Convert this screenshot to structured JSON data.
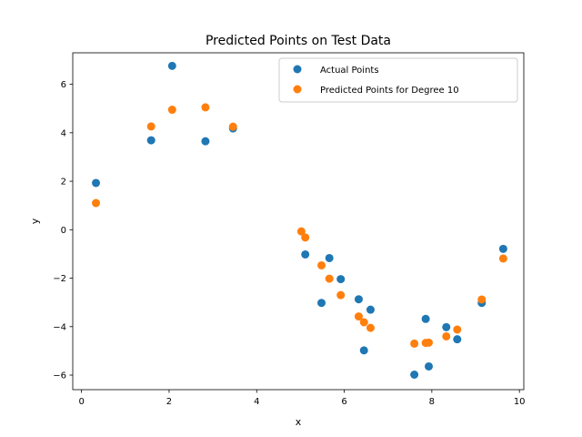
{
  "chart_data": {
    "type": "scatter",
    "title": "Predicted Points on Test Data",
    "xlabel": "x",
    "ylabel": "y",
    "xlim": [
      -0.2,
      10.1
    ],
    "ylim": [
      -6.6,
      7.3
    ],
    "xticks": [
      0,
      2,
      4,
      6,
      8,
      10
    ],
    "yticks": [
      -6,
      -4,
      -2,
      0,
      2,
      4,
      6
    ],
    "grid": false,
    "legend_position": "upper right",
    "series": [
      {
        "name": "Actual Points",
        "color": "#1f77b4",
        "points": [
          [
            0.33,
            1.93
          ],
          [
            1.59,
            3.69
          ],
          [
            2.07,
            6.76
          ],
          [
            2.83,
            3.65
          ],
          [
            3.46,
            4.18
          ],
          [
            5.11,
            -1.02
          ],
          [
            5.48,
            -3.02
          ],
          [
            5.66,
            -1.17
          ],
          [
            5.92,
            -2.04
          ],
          [
            6.33,
            -2.87
          ],
          [
            6.45,
            -4.98
          ],
          [
            6.6,
            -3.3
          ],
          [
            7.6,
            -5.98
          ],
          [
            7.86,
            -3.68
          ],
          [
            7.93,
            -5.64
          ],
          [
            8.33,
            -4.02
          ],
          [
            8.58,
            -4.52
          ],
          [
            9.14,
            -3.02
          ],
          [
            9.63,
            -0.79
          ]
        ]
      },
      {
        "name": "Predicted Points for Degree 10",
        "color": "#ff7f0e",
        "points": [
          [
            0.33,
            1.1
          ],
          [
            1.59,
            4.26
          ],
          [
            2.07,
            4.95
          ],
          [
            2.83,
            5.05
          ],
          [
            3.46,
            4.25
          ],
          [
            5.02,
            -0.07
          ],
          [
            5.11,
            -0.32
          ],
          [
            5.48,
            -1.47
          ],
          [
            5.66,
            -2.02
          ],
          [
            5.92,
            -2.7
          ],
          [
            6.33,
            -3.58
          ],
          [
            6.45,
            -3.82
          ],
          [
            6.6,
            -4.05
          ],
          [
            7.6,
            -4.7
          ],
          [
            7.86,
            -4.67
          ],
          [
            7.93,
            -4.66
          ],
          [
            8.33,
            -4.4
          ],
          [
            8.58,
            -4.12
          ],
          [
            9.14,
            -2.88
          ],
          [
            9.63,
            -1.19
          ]
        ]
      }
    ]
  }
}
